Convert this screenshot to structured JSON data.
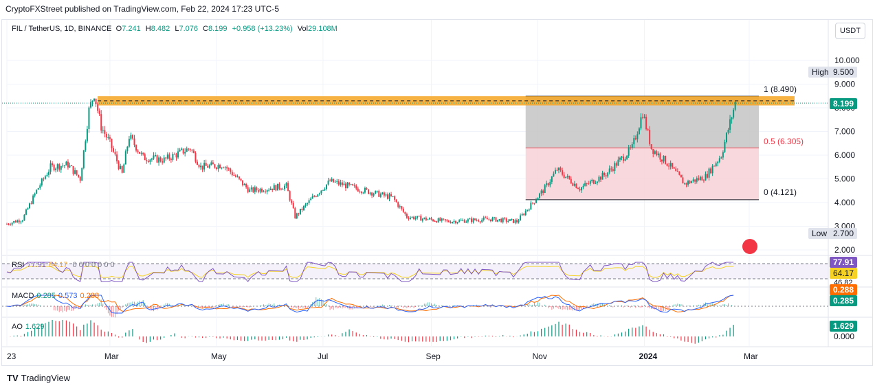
{
  "header": {
    "published": "CryptoFXStreet published on TradingView.com, Feb 22, 2024 17:23 UTC-5"
  },
  "legend": {
    "symbol": "FIL / TetherUS, 1D, BINANCE",
    "o_key": "O",
    "o": "7.241",
    "h_key": "H",
    "h": "8.482",
    "l_key": "L",
    "l": "7.076",
    "c_key": "C",
    "c": "8.199",
    "chg": "+0.958 (+13.23%)",
    "vol_key": "Vol",
    "vol": "29.108M"
  },
  "currency_button": "USDT",
  "price_axis": {
    "ticks": [
      "10.000",
      "9.000",
      "8.000",
      "7.000",
      "6.000",
      "5.000",
      "4.000",
      "3.000",
      "2.000"
    ],
    "high_label": "High",
    "high_value": "9.500",
    "low_label": "Low",
    "low_value": "2.700",
    "last_price": "8.199"
  },
  "fib": {
    "level_1": "1 (8.490)",
    "level_05": "0.5 (6.305)",
    "level_0": "0 (4.121)"
  },
  "rsi": {
    "name": "RSI",
    "v1": "77.91",
    "v2": "64.17",
    "axis_a": "77.91",
    "axis_b": "64.17",
    "axis_c": "46.82",
    "params": "0 0 0 0 0 0 0"
  },
  "macd": {
    "name": "MACD",
    "v1": "0.285",
    "v2": "0.573",
    "v3": "0.288",
    "axis_a": "0.288",
    "axis_b": "0.285"
  },
  "ao": {
    "name": "AO",
    "v1": "1.629",
    "axis_a": "1.629",
    "axis_b": "0.000"
  },
  "time_axis": [
    "23",
    "Mar",
    "May",
    "Jul",
    "Sep",
    "Nov",
    "2024",
    "Mar"
  ],
  "footer": {
    "brand": "TradingView",
    "logo": "TV"
  },
  "colors": {
    "up": "#089981",
    "down": "#f23645",
    "zone": "#f5a623",
    "rsi": "#7e57c2",
    "macd": "#2962ff",
    "signal": "#ff6d00"
  },
  "chart_data": {
    "type": "candlestick",
    "title": "FIL / TetherUS, 1D, BINANCE",
    "ylim": [
      2.0,
      10.0
    ],
    "x_range": [
      "2023-01",
      "2024-02-22"
    ],
    "price_path": [
      [
        "2023-01-01",
        3.1
      ],
      [
        "2023-01-10",
        3.3
      ],
      [
        "2023-01-18",
        4.5
      ],
      [
        "2023-01-26",
        5.5
      ],
      [
        "2023-02-05",
        5.6
      ],
      [
        "2023-02-12",
        5.0
      ],
      [
        "2023-02-17",
        7.9
      ],
      [
        "2023-02-20",
        8.6
      ],
      [
        "2023-02-24",
        7.2
      ],
      [
        "2023-03-01",
        6.5
      ],
      [
        "2023-03-08",
        5.2
      ],
      [
        "2023-03-12",
        6.8
      ],
      [
        "2023-03-20",
        5.9
      ],
      [
        "2023-04-01",
        5.8
      ],
      [
        "2023-04-16",
        6.3
      ],
      [
        "2023-04-22",
        5.5
      ],
      [
        "2023-05-05",
        5.6
      ],
      [
        "2023-05-20",
        4.5
      ],
      [
        "2023-06-10",
        4.7
      ],
      [
        "2023-06-15",
        3.4
      ],
      [
        "2023-06-25",
        4.2
      ],
      [
        "2023-07-05",
        4.9
      ],
      [
        "2023-07-20",
        4.6
      ],
      [
        "2023-08-10",
        4.2
      ],
      [
        "2023-08-18",
        3.4
      ],
      [
        "2023-09-10",
        3.2
      ],
      [
        "2023-10-05",
        3.3
      ],
      [
        "2023-10-20",
        3.2
      ],
      [
        "2023-11-05",
        4.6
      ],
      [
        "2023-11-12",
        5.4
      ],
      [
        "2023-11-25",
        4.6
      ],
      [
        "2023-12-10",
        5.2
      ],
      [
        "2023-12-25",
        6.3
      ],
      [
        "2023-12-31",
        7.8
      ],
      [
        "2024-01-05",
        6.3
      ],
      [
        "2024-01-15",
        5.6
      ],
      [
        "2024-01-24",
        4.8
      ],
      [
        "2024-02-05",
        5.1
      ],
      [
        "2024-02-14",
        6.0
      ],
      [
        "2024-02-18",
        7.1
      ],
      [
        "2024-02-22",
        8.199
      ]
    ],
    "supply_zone": [
      8.1,
      8.49
    ],
    "fib_levels": [
      {
        "ratio": 1,
        "value": 8.49
      },
      {
        "ratio": 0.5,
        "value": 6.305
      },
      {
        "ratio": 0,
        "value": 4.121
      }
    ],
    "high": 9.5,
    "low": 2.7,
    "last": 8.199,
    "x_ticks": [
      "23",
      "Mar",
      "May",
      "Jul",
      "Sep",
      "Nov",
      "2024",
      "Mar"
    ],
    "indicators": {
      "rsi": {
        "value": 77.91,
        "ma": 64.17
      },
      "macd": {
        "macd": 0.285,
        "hist": 0.573,
        "signal": 0.288
      },
      "ao": {
        "value": 1.629
      }
    }
  }
}
